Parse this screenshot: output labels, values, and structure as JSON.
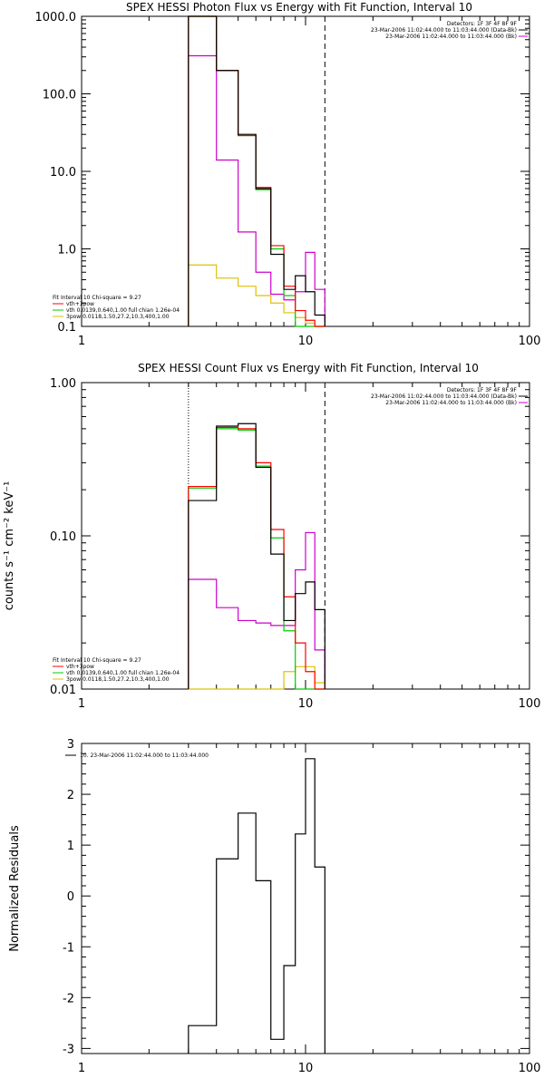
{
  "chart_data": [
    {
      "type": "line",
      "title": "SPEX HESSI Photon Flux vs Energy with Fit Function, Interval 10",
      "xlabel": "",
      "ylabel": "",
      "xscale": "log",
      "yscale": "log",
      "xlim": [
        1,
        100
      ],
      "ylim": [
        0.1,
        1000
      ],
      "xticks": [
        "1",
        "10",
        "100"
      ],
      "yticks": [
        "0.1",
        "1.0",
        "10.0",
        "100.0",
        "1000.0"
      ],
      "legend_top": [
        "Detectors: 1F 3F 4F 8F 9F",
        "23-Mar-2006 11:02:44.000 to 11:03:44.000 (Data-Bk)",
        "23-Mar-2006 11:02:44.000 to 11:03:44.000 (Bk)"
      ],
      "legend_bottom": [
        "Fit Interval 10   Chi-square = 9.27",
        "vth+3pow",
        "vth 0.0139,0.640,1.00  full chian 1.26e-04",
        "3pow 0.0118,1.50,27.2,10.3,400,1.00"
      ],
      "dotted_x": 3.0,
      "dashed_x": 12.2,
      "edges": [
        3.0,
        4.0,
        5.0,
        6.0,
        7.0,
        8.0,
        9.0,
        10.0,
        11.0,
        12.2
      ],
      "series": [
        {
          "name": "Data-Bk",
          "color": "#000000",
          "values": [
            1000,
            200,
            30,
            6,
            0.85,
            0.3,
            0.45,
            0.28,
            0.14
          ]
        },
        {
          "name": "vth+3pow",
          "color": "#ff0000",
          "values": [
            1000,
            200,
            29,
            6.2,
            1.1,
            0.33,
            0.16,
            0.12,
            0.1
          ]
        },
        {
          "name": "vth",
          "color": "#00cc00",
          "values": [
            1000,
            200,
            29,
            5.8,
            1.0,
            0.25,
            0.1,
            0.1,
            0.1
          ]
        },
        {
          "name": "3pow",
          "color": "#e0c000",
          "values": [
            0.62,
            0.42,
            0.33,
            0.25,
            0.2,
            0.15,
            0.13,
            0.11,
            0.1
          ]
        },
        {
          "name": "Bk",
          "color": "#cc00cc",
          "values": [
            310,
            14,
            1.65,
            0.5,
            0.26,
            0.22,
            0.28,
            0.9,
            0.3
          ]
        }
      ]
    },
    {
      "type": "line",
      "title": "SPEX HESSI Count Flux vs Energy with Fit Function, Interval 10",
      "xlabel": "",
      "ylabel": "counts s⁻¹ cm⁻² keV⁻¹",
      "xscale": "log",
      "yscale": "log",
      "xlim": [
        1,
        100
      ],
      "ylim": [
        0.01,
        1
      ],
      "xticks": [
        "1",
        "10",
        "100"
      ],
      "yticks": [
        "0.01",
        "0.10",
        "1.00"
      ],
      "legend_top": [
        "Detectors: 1F 3F 4F 8F 9F",
        "23-Mar-2006 11:02:44.000 to 11:03:44.000 (Data-Bk)",
        "23-Mar-2006 11:02:44.000 to 11:03:44.000 (Bk)"
      ],
      "legend_bottom": [
        "Fit Interval 10   Chi-square = 9.27",
        "vth+3pow",
        "vth 0.0139,0.640,1.00  full chian 1.26e-04",
        "3pow 0.0118,1.50,27.2,10.3,400,1.00"
      ],
      "dotted_x": 3.0,
      "dashed_x": 12.2,
      "edges": [
        3.0,
        4.0,
        5.0,
        6.0,
        7.0,
        8.0,
        9.0,
        10.0,
        11.0,
        12.2
      ],
      "series": [
        {
          "name": "Data-Bk",
          "color": "#000000",
          "values": [
            0.17,
            0.52,
            0.54,
            0.28,
            0.076,
            0.028,
            0.042,
            0.05,
            0.033
          ]
        },
        {
          "name": "vth+3pow",
          "color": "#ff0000",
          "values": [
            0.21,
            0.51,
            0.5,
            0.3,
            0.11,
            0.04,
            0.02,
            0.013,
            0.01
          ]
        },
        {
          "name": "vth",
          "color": "#00cc00",
          "values": [
            0.205,
            0.5,
            0.49,
            0.285,
            0.097,
            0.024,
            0.01,
            0.01,
            0.01
          ]
        },
        {
          "name": "3pow",
          "color": "#e0c000",
          "values": [
            0.01,
            0.01,
            0.01,
            0.01,
            0.01,
            0.013,
            0.014,
            0.014,
            0.011
          ]
        },
        {
          "name": "Bk",
          "color": "#cc00cc",
          "values": [
            0.052,
            0.034,
            0.028,
            0.027,
            0.026,
            0.026,
            0.06,
            0.105,
            0.018
          ]
        }
      ]
    },
    {
      "type": "line",
      "title": "",
      "xlabel": "",
      "ylabel": "Normalized Residuals",
      "xscale": "log",
      "yscale": "linear",
      "xlim": [
        1,
        100
      ],
      "ylim": [
        -3.1,
        3
      ],
      "xticks": [
        "1",
        "10",
        "100"
      ],
      "yticks": [
        "-3",
        "-2",
        "-1",
        "0",
        "1",
        "2",
        "3"
      ],
      "legend": "10. 23-Mar-2006 11:02:44.000 to 11:03:44.000",
      "edges": [
        3.0,
        4.0,
        5.0,
        6.0,
        7.0,
        8.0,
        9.0,
        10.0,
        11.0,
        12.2
      ],
      "series": [
        {
          "name": "10. 23-Mar-2006 11:02:44.000 to 11:03:44.000",
          "color": "#000000",
          "values": [
            -2.55,
            0.73,
            1.63,
            0.3,
            -2.82,
            -1.37,
            1.22,
            2.7,
            0.57
          ]
        }
      ]
    }
  ]
}
